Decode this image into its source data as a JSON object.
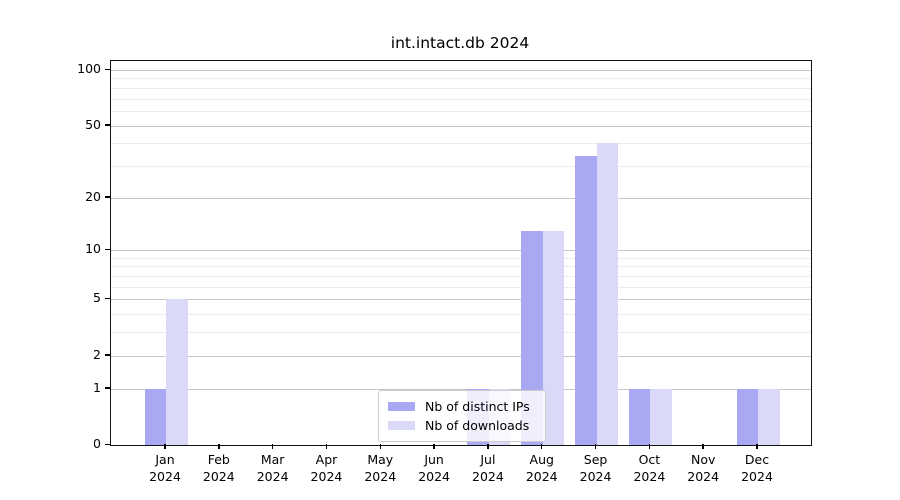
{
  "title": "int.intact.db 2024",
  "chart_data": {
    "type": "bar",
    "title": "int.intact.db 2024",
    "categories": [
      "Jan",
      "Feb",
      "Mar",
      "Apr",
      "May",
      "Jun",
      "Jul",
      "Aug",
      "Sep",
      "Oct",
      "Nov",
      "Dec"
    ],
    "year_label": "2024",
    "series": [
      {
        "name": "Nb of distinct IPs",
        "color": "#a9a9f3",
        "values": [
          1,
          0,
          0,
          0,
          0,
          0,
          1,
          13,
          34,
          1,
          0,
          1
        ]
      },
      {
        "name": "Nb of downloads",
        "color": "#dadaf8",
        "values": [
          5,
          0,
          0,
          0,
          0,
          0,
          1,
          13,
          40,
          1,
          0,
          1
        ]
      }
    ],
    "yscale": "log10(1+v)",
    "ylim": [
      0,
      112
    ],
    "yticks": [
      0,
      1,
      2,
      5,
      10,
      20,
      50,
      100
    ],
    "minor_yticks": [
      3,
      4,
      6,
      7,
      8,
      9,
      30,
      40,
      60,
      70,
      80,
      90
    ],
    "grid": "horizontal",
    "grid_major_color": "#c6c6c6",
    "grid_minor_color": "#ededed",
    "legend_position": "lower center"
  }
}
